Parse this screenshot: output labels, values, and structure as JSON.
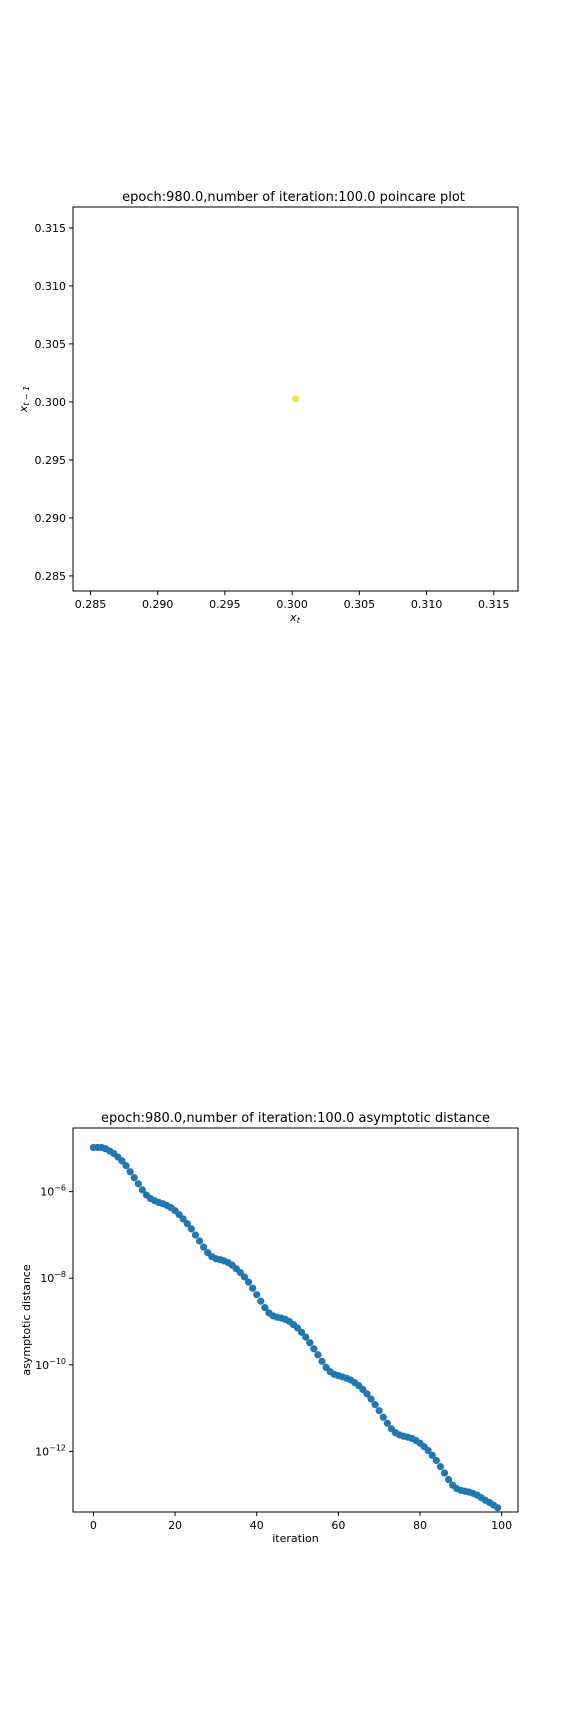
{
  "chart_data": [
    {
      "type": "scatter",
      "title": "epoch:980.0,number of iteration:100.0 poincare plot",
      "xlabel": "x_t",
      "ylabel": "x_{t-1}",
      "xlim": [
        0.2837,
        0.3168
      ],
      "ylim": [
        0.2837,
        0.3168
      ],
      "x_ticks": [
        "0.285",
        "0.290",
        "0.295",
        "0.300",
        "0.305",
        "0.310",
        "0.315"
      ],
      "y_ticks": [
        "0.285",
        "0.290",
        "0.295",
        "0.300",
        "0.305",
        "0.310",
        "0.315"
      ],
      "points": [
        {
          "x": 0.30023,
          "y": 0.30028
        },
        {
          "x": 0.30027,
          "y": 0.30025
        },
        {
          "x": 0.30025,
          "y": 0.30027
        },
        {
          "x": 0.30026,
          "y": 0.30026
        },
        {
          "x": 0.30024,
          "y": 0.30023
        },
        {
          "x": 0.30028,
          "y": 0.30029
        },
        {
          "x": 0.30022,
          "y": 0.30026
        },
        {
          "x": 0.30029,
          "y": 0.30024
        }
      ],
      "point_color": "#f0e442",
      "grid": false
    },
    {
      "type": "scatter",
      "title": "epoch:980.0,number of iteration:100.0 asymptotic distance",
      "xlabel": "iteration",
      "ylabel": "asymptotic distance",
      "yscale": "log",
      "xlim": [
        -5,
        104
      ],
      "ylim_log10": [
        -13.4,
        -4.53
      ],
      "x_ticks": [
        0,
        20,
        40,
        60,
        80,
        100
      ],
      "y_ticks_log10": [
        -6,
        -8,
        -10,
        -12
      ],
      "point_color": "#1f77b4",
      "grid": false,
      "x": [
        0,
        1,
        2,
        3,
        4,
        5,
        6,
        7,
        8,
        9,
        10,
        11,
        12,
        13,
        14,
        15,
        16,
        17,
        18,
        19,
        20,
        21,
        22,
        23,
        24,
        25,
        26,
        27,
        28,
        29,
        30,
        31,
        32,
        33,
        34,
        35,
        36,
        37,
        38,
        39,
        40,
        41,
        42,
        43,
        44,
        45,
        46,
        47,
        48,
        49,
        50,
        51,
        52,
        53,
        54,
        55,
        56,
        57,
        58,
        59,
        60,
        61,
        62,
        63,
        64,
        65,
        66,
        67,
        68,
        69,
        70,
        71,
        72,
        73,
        74,
        75,
        76,
        77,
        78,
        79,
        80,
        81,
        82,
        83,
        84,
        85,
        86,
        87,
        88,
        89,
        90,
        91,
        92,
        93,
        94,
        95,
        96,
        97,
        98,
        99
      ],
      "log10_values": [
        -4.98,
        -4.98,
        -4.98,
        -5.01,
        -5.06,
        -5.12,
        -5.2,
        -5.29,
        -5.4,
        -5.54,
        -5.68,
        -5.82,
        -5.96,
        -6.08,
        -6.16,
        -6.21,
        -6.25,
        -6.28,
        -6.32,
        -6.37,
        -6.44,
        -6.53,
        -6.63,
        -6.74,
        -6.86,
        -7.0,
        -7.14,
        -7.28,
        -7.41,
        -7.5,
        -7.55,
        -7.57,
        -7.6,
        -7.64,
        -7.7,
        -7.78,
        -7.87,
        -7.97,
        -8.09,
        -8.23,
        -8.38,
        -8.53,
        -8.68,
        -8.8,
        -8.87,
        -8.9,
        -8.92,
        -8.95,
        -9.0,
        -9.07,
        -9.15,
        -9.25,
        -9.36,
        -9.49,
        -9.63,
        -9.77,
        -9.92,
        -10.06,
        -10.16,
        -10.22,
        -10.25,
        -10.28,
        -10.31,
        -10.35,
        -10.41,
        -10.48,
        -10.57,
        -10.67,
        -10.79,
        -10.92,
        -11.06,
        -11.21,
        -11.35,
        -11.48,
        -11.57,
        -11.62,
        -11.65,
        -11.67,
        -11.7,
        -11.75,
        -11.81,
        -11.89,
        -11.98,
        -12.09,
        -12.21,
        -12.35,
        -12.5,
        -12.65,
        -12.78,
        -12.86,
        -12.9,
        -12.92,
        -12.94,
        -12.97,
        -13.01,
        -13.07,
        -13.13,
        -13.18,
        -13.24,
        -13.3
      ]
    }
  ]
}
